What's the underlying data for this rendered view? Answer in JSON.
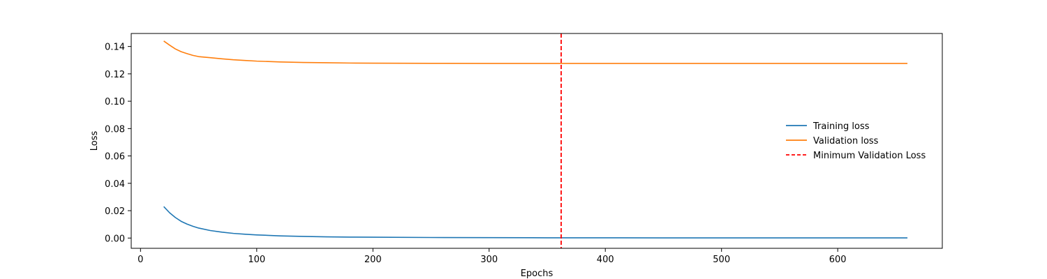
{
  "chart_data": {
    "type": "line",
    "title": "",
    "xlabel": "Epochs",
    "ylabel": "Loss",
    "xlim": [
      -8,
      690
    ],
    "ylim": [
      -0.0075,
      0.1495
    ],
    "xticks": [
      0,
      100,
      200,
      300,
      400,
      500,
      600
    ],
    "xtick_labels": [
      "0",
      "100",
      "200",
      "300",
      "400",
      "500",
      "600"
    ],
    "yticks": [
      0.0,
      0.02,
      0.04,
      0.06,
      0.08,
      0.1,
      0.12,
      0.14
    ],
    "ytick_labels": [
      "0.00",
      "0.02",
      "0.04",
      "0.06",
      "0.08",
      "0.10",
      "0.12",
      "0.14"
    ],
    "grid": false,
    "legend_position": "center-right",
    "series": [
      {
        "name": "Training loss",
        "color": "#1f77b4",
        "style": "solid",
        "x": [
          20,
          25,
          30,
          35,
          40,
          45,
          50,
          60,
          70,
          80,
          90,
          100,
          120,
          140,
          160,
          180,
          200,
          250,
          300,
          350,
          400,
          450,
          500,
          550,
          600,
          660
        ],
        "y": [
          0.023,
          0.0185,
          0.015,
          0.0122,
          0.0102,
          0.0086,
          0.0073,
          0.0055,
          0.0043,
          0.0034,
          0.0028,
          0.0023,
          0.0016,
          0.0012,
          0.0009,
          0.0007,
          0.0006,
          0.0004,
          0.0003,
          0.0002,
          0.0002,
          0.0001,
          0.0001,
          0.0001,
          0.0001,
          0.0001
        ]
      },
      {
        "name": "Validation loss",
        "color": "#ff7f0e",
        "style": "solid",
        "x": [
          20,
          25,
          30,
          35,
          40,
          45,
          50,
          60,
          70,
          80,
          90,
          100,
          120,
          140,
          160,
          180,
          200,
          250,
          300,
          350,
          400,
          450,
          500,
          550,
          600,
          660
        ],
        "y": [
          0.144,
          0.141,
          0.1382,
          0.1362,
          0.1348,
          0.1335,
          0.1326,
          0.1318,
          0.131,
          0.1303,
          0.1298,
          0.1293,
          0.1287,
          0.1283,
          0.1281,
          0.1279,
          0.1278,
          0.1277,
          0.1276,
          0.1276,
          0.1276,
          0.1276,
          0.1276,
          0.1276,
          0.1276,
          0.1276
        ]
      }
    ],
    "vline": {
      "name": "Minimum Validation Loss",
      "x": 362,
      "color": "#ff0000",
      "style": "dashed"
    }
  }
}
